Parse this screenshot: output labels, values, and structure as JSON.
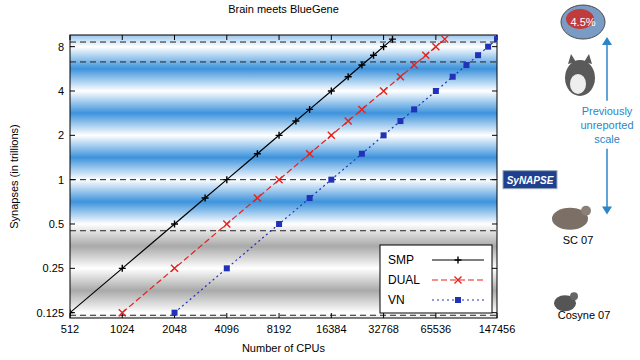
{
  "chart_data": {
    "type": "line",
    "title": "Brain meets BlueGene",
    "x_label": "Number of CPUs",
    "y_label": "Synapses (in trillions)",
    "log": true,
    "xlim": [
      512,
      147456
    ],
    "ylim": [
      0.115,
      9.6
    ],
    "xticks": [
      512,
      1024,
      2048,
      4096,
      8192,
      16384,
      32768,
      65536,
      147456
    ],
    "yticks": [
      0.125,
      0.25,
      0.5,
      1,
      2,
      4,
      8
    ],
    "legend": "lower right",
    "series": [
      {
        "name": "SMP",
        "color": "#000000",
        "marker": "plus",
        "line_style": "solid",
        "x": [
          512,
          1024,
          2048,
          3072,
          4096,
          6144,
          8192,
          10240,
          12288,
          16384,
          20480,
          24576,
          28672,
          32768,
          36864
        ],
        "values": [
          0.125,
          0.25,
          0.5,
          0.75,
          1,
          1.5,
          2,
          2.5,
          3,
          4,
          5,
          6,
          7,
          8,
          9
        ]
      },
      {
        "name": "DUAL",
        "color": "#e8221b",
        "marker": "x",
        "line_style": "dashed",
        "x": [
          1024,
          2048,
          4096,
          6144,
          8192,
          12288,
          16384,
          20480,
          24576,
          32768,
          40960,
          49152,
          57344,
          65536,
          73728
        ],
        "values": [
          0.125,
          0.25,
          0.5,
          0.75,
          1,
          1.5,
          2,
          2.5,
          3,
          4,
          5,
          6,
          7,
          8,
          9
        ]
      },
      {
        "name": "VN",
        "color": "#2232b8",
        "marker": "square",
        "line_style": "dotted",
        "x": [
          2048,
          4096,
          8192,
          12288,
          16384,
          24576,
          32768,
          40960,
          49152,
          65536,
          81920,
          98304,
          114688,
          131072,
          147456
        ],
        "values": [
          0.125,
          0.25,
          0.5,
          0.75,
          1,
          1.5,
          2,
          2.5,
          3,
          4,
          5,
          6,
          7,
          8,
          9
        ]
      }
    ],
    "annotations": [
      {
        "text": "4.5%",
        "value": 8.6
      },
      {
        "value": 6.3
      },
      {
        "text": "SyNAPSE",
        "value": 1
      },
      {
        "text": "SC 07",
        "value": 0.45
      },
      {
        "text": "Cosyne 07",
        "value": 0.12
      }
    ],
    "scale_note": {
      "text": "Previously unreported scale",
      "from": 0.58,
      "to": 9.3
    }
  }
}
